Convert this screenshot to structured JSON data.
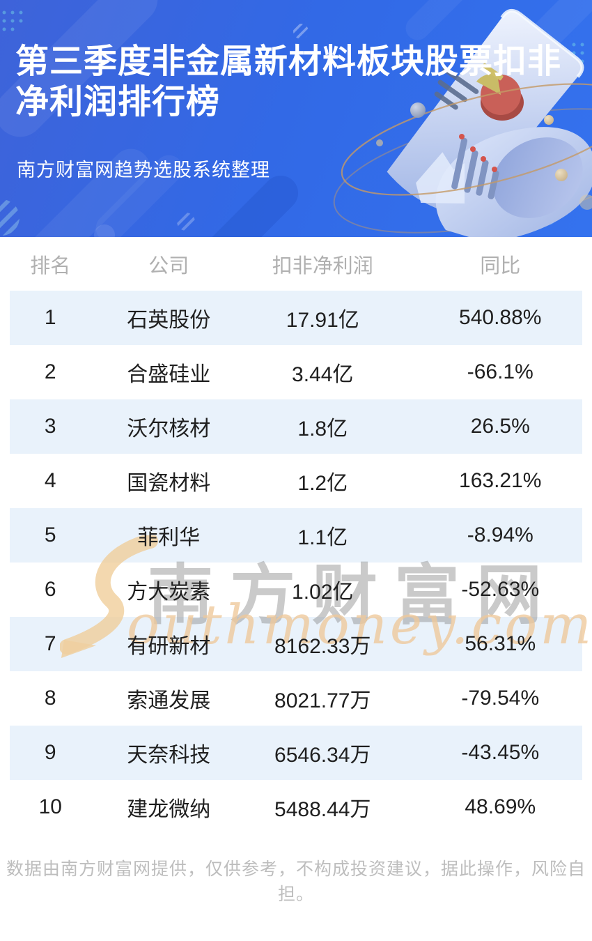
{
  "header": {
    "title": "第三季度非金属新材料板块股票扣非净利润排行榜",
    "title_line1": "第三季度非金属新材料板块股票扣非",
    "title_line2": "净利润排行榜",
    "subtitle": "南方财富网趋势选股系统整理",
    "bg_color": "#3269e6"
  },
  "table": {
    "columns": [
      "排名",
      "公司",
      "扣非净利润",
      "同比"
    ],
    "rows": [
      {
        "rank": "1",
        "company": "石英股份",
        "profit": "17.91亿",
        "yoy": "540.88%"
      },
      {
        "rank": "2",
        "company": "合盛硅业",
        "profit": "3.44亿",
        "yoy": "-66.1%"
      },
      {
        "rank": "3",
        "company": "沃尔核材",
        "profit": "1.8亿",
        "yoy": "26.5%"
      },
      {
        "rank": "4",
        "company": "国瓷材料",
        "profit": "1.2亿",
        "yoy": "163.21%"
      },
      {
        "rank": "5",
        "company": "菲利华",
        "profit": "1.1亿",
        "yoy": "-8.94%"
      },
      {
        "rank": "6",
        "company": "方大炭素",
        "profit": "1.02亿",
        "yoy": "-52.63%"
      },
      {
        "rank": "7",
        "company": "有研新材",
        "profit": "8162.33万",
        "yoy": "56.31%"
      },
      {
        "rank": "8",
        "company": "索通发展",
        "profit": "8021.77万",
        "yoy": "-79.54%"
      },
      {
        "rank": "9",
        "company": "天奈科技",
        "profit": "6546.34万",
        "yoy": "-43.45%"
      },
      {
        "rank": "10",
        "company": "建龙微纳",
        "profit": "5488.44万",
        "yoy": "48.69%"
      }
    ],
    "stripe_color": "#e9f2fb",
    "header_text_color": "#b0b0b0",
    "cell_text_color": "#1f1f1f"
  },
  "watermark": {
    "cn": "南方财富网",
    "en": "outhmoney.com",
    "s_color": "#f0cd96",
    "cn_color": "#919191",
    "en_color": "#eec89a"
  },
  "footer": {
    "disclaimer": "数据由南方财富网提供，仅供参考，不构成投资建议，据此操作，风险自担。"
  },
  "chart_data": {
    "type": "table",
    "title": "第三季度非金属新材料板块股票扣非净利润排行榜",
    "source_note": "南方财富网趋势选股系统整理",
    "columns": [
      "排名",
      "公司",
      "扣非净利润",
      "同比"
    ],
    "rows": [
      [
        "1",
        "石英股份",
        "17.91亿",
        "540.88%"
      ],
      [
        "2",
        "合盛硅业",
        "3.44亿",
        "-66.1%"
      ],
      [
        "3",
        "沃尔核材",
        "1.8亿",
        "26.5%"
      ],
      [
        "4",
        "国瓷材料",
        "1.2亿",
        "163.21%"
      ],
      [
        "5",
        "菲利华",
        "1.1亿",
        "-8.94%"
      ],
      [
        "6",
        "方大炭素",
        "1.02亿",
        "-52.63%"
      ],
      [
        "7",
        "有研新材",
        "8162.33万",
        "56.31%"
      ],
      [
        "8",
        "索通发展",
        "8021.77万",
        "-79.54%"
      ],
      [
        "9",
        "天奈科技",
        "6546.34万",
        "-43.45%"
      ],
      [
        "10",
        "建龙微纳",
        "5488.44万",
        "48.69%"
      ]
    ]
  }
}
